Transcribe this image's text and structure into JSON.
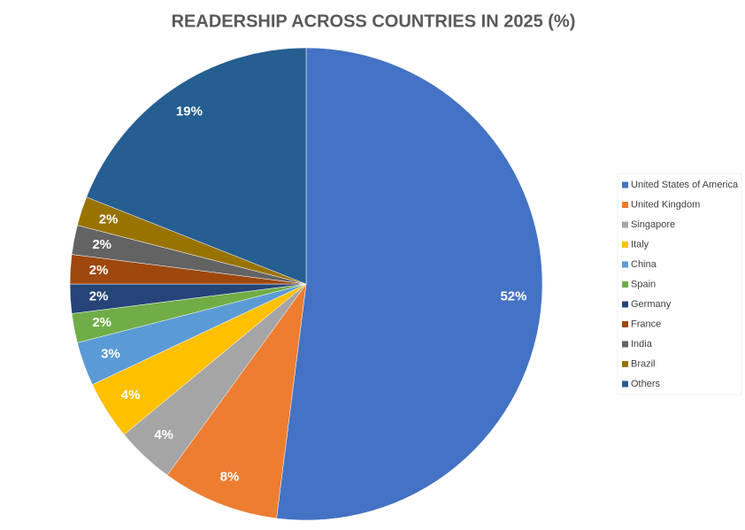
{
  "chart_data": {
    "type": "pie",
    "title": "READERSHIP ACROSS COUNTRIES IN 2025 (%)",
    "categories": [
      "United States of America",
      "United Kingdom",
      "Singapore",
      "Italy",
      "China",
      "Spain",
      "Germany",
      "France",
      "India",
      "Brazil",
      "Others"
    ],
    "values": [
      52,
      8,
      4,
      4,
      3,
      2,
      2,
      2,
      2,
      2,
      19
    ],
    "value_labels": [
      "52%",
      "8%",
      "4%",
      "4%",
      "3%",
      "2%",
      "2%",
      "2%",
      "2%",
      "2%",
      "19%"
    ],
    "colors": [
      "#4472c4",
      "#ed7d31",
      "#a5a5a5",
      "#ffc000",
      "#5b9bd5",
      "#70ad47",
      "#264478",
      "#9e480e",
      "#636363",
      "#997300",
      "#255e91"
    ],
    "legend": "right"
  }
}
